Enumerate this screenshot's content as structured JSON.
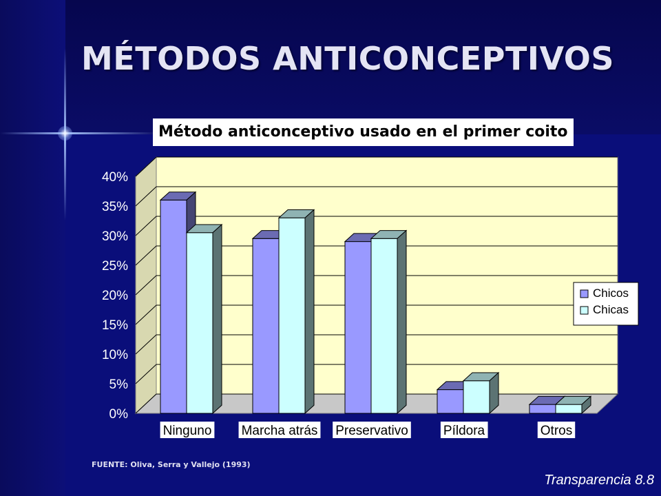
{
  "slide": {
    "title": "MÉTODOS ANTICONCEPTIVOS",
    "source_note": "FUENTE: Oliva, Serra y Vallejo  (1993)",
    "slide_number": "Transparencia 8.8"
  },
  "colors": {
    "background": "#0a0e7a",
    "plot_area": "#ffffcc",
    "chicos": "#9999ff",
    "chicas": "#ccffff"
  },
  "chart_data": {
    "type": "bar",
    "title": "Método anticonceptivo usado en el primer coito",
    "categories": [
      "Ninguno",
      "Marcha atrás",
      "Preservativo",
      "Píldora",
      "Otros"
    ],
    "series": [
      {
        "name": "Chicos",
        "values": [
          36,
          29.5,
          29,
          4,
          1.5
        ]
      },
      {
        "name": "Chicas",
        "values": [
          30.5,
          33,
          29.5,
          5.5,
          1.5
        ]
      }
    ],
    "y_ticks": [
      "0%",
      "5%",
      "10%",
      "15%",
      "20%",
      "25%",
      "30%",
      "35%",
      "40%"
    ],
    "ylim": [
      0,
      40
    ],
    "grid": true,
    "legend": "right",
    "xlabel": "",
    "ylabel": ""
  }
}
